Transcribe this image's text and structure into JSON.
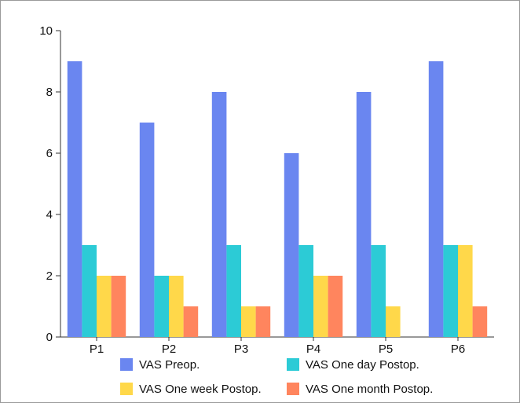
{
  "chart_data": {
    "type": "bar",
    "title": "",
    "xlabel": "",
    "ylabel": "",
    "categories": [
      "P1",
      "P2",
      "P3",
      "P4",
      "P5",
      "P6"
    ],
    "series": [
      {
        "name": "VAS Preop.",
        "color": "#6a86f0",
        "values": [
          9,
          7,
          8,
          6,
          8,
          9
        ]
      },
      {
        "name": "VAS One day Postop.",
        "color": "#2ccbd6",
        "values": [
          3,
          2,
          3,
          3,
          3,
          3
        ]
      },
      {
        "name": "VAS One week Postop.",
        "color": "#ffd84a",
        "values": [
          2,
          2,
          1,
          2,
          1,
          3
        ]
      },
      {
        "name": "VAS One month Postop.",
        "color": "#ff855e",
        "values": [
          2,
          1,
          1,
          2,
          0,
          1
        ]
      }
    ],
    "ylim": [
      0,
      10
    ],
    "yticks": [
      0,
      2,
      4,
      6,
      8,
      10
    ],
    "grid": false,
    "legend": "bottom"
  }
}
